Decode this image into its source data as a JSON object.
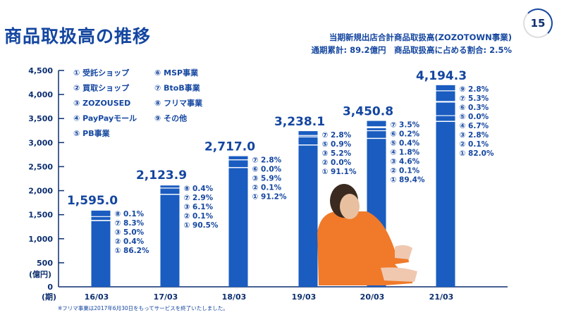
{
  "header": {
    "title": "商品取扱高の推移",
    "subtitle_line1": "当期新規出店合計商品取扱高(ZOZOTOWN事業)",
    "subtitle_line2": "通期累計: 89.2億円　商品取扱高に占める割合: 2.5%",
    "page_number": "15"
  },
  "footnote": "※フリマ事業は2017年6月30日をもってサービスを終了いたしました。",
  "colors": {
    "bar": "#1a5cc0",
    "text": "#1446a0",
    "axis": "#0d2f70"
  },
  "chart_data": {
    "type": "bar",
    "title": "商品取扱高の推移",
    "ylabel": "(億円)",
    "xlabel": "(期)",
    "ylim": [
      0,
      4500
    ],
    "yticks": [
      "0",
      "500",
      "1,000",
      "1,500",
      "2,000",
      "2,500",
      "3,000",
      "3,500",
      "4,000",
      "4,500"
    ],
    "ytick_values": [
      0,
      500,
      1000,
      1500,
      2000,
      2500,
      3000,
      3500,
      4000,
      4500
    ],
    "legend": [
      "① 受託ショップ",
      "② 買取ショップ",
      "③ ZOZOUSED",
      "④ PayPayモール",
      "⑤ PB事業",
      "⑥ MSP事業",
      "⑦ BtoB事業",
      "⑧ フリマ事業",
      "⑨ その他"
    ],
    "categories": [
      "16/03",
      "17/03",
      "18/03",
      "19/03",
      "20/03",
      "21/03"
    ],
    "values": [
      1595.0,
      2123.9,
      2717.0,
      3238.1,
      3450.8,
      4194.3
    ],
    "value_labels": [
      "1,595.0",
      "2,123.9",
      "2,717.0",
      "3,238.1",
      "3,450.8",
      "4,194.3"
    ],
    "breakdown": [
      [
        {
          "label": "⑧ 0.1%",
          "pct": 0.1
        },
        {
          "label": "⑦ 8.3%",
          "pct": 8.3
        },
        {
          "label": "③ 5.0%",
          "pct": 5.0
        },
        {
          "label": "② 0.4%",
          "pct": 0.4
        },
        {
          "label": "① 86.2%",
          "pct": 86.2
        }
      ],
      [
        {
          "label": "⑧ 0.4%",
          "pct": 0.4
        },
        {
          "label": "⑦ 2.9%",
          "pct": 2.9
        },
        {
          "label": "③ 6.1%",
          "pct": 6.1
        },
        {
          "label": "② 0.1%",
          "pct": 0.1
        },
        {
          "label": "① 90.5%",
          "pct": 90.5
        }
      ],
      [
        {
          "label": "⑦ 2.8%",
          "pct": 2.8
        },
        {
          "label": "⑥ 0.0%",
          "pct": 0.0
        },
        {
          "label": "③ 5.9%",
          "pct": 5.9
        },
        {
          "label": "② 0.1%",
          "pct": 0.1
        },
        {
          "label": "① 91.2%",
          "pct": 91.2
        }
      ],
      [
        {
          "label": "⑦ 2.8%",
          "pct": 2.8
        },
        {
          "label": "⑤ 0.9%",
          "pct": 0.9
        },
        {
          "label": "③ 5.2%",
          "pct": 5.2
        },
        {
          "label": "② 0.0%",
          "pct": 0.0
        },
        {
          "label": "① 91.1%",
          "pct": 91.1
        }
      ],
      [
        {
          "label": "⑦ 3.5%",
          "pct": 3.5
        },
        {
          "label": "⑥ 0.2%",
          "pct": 0.2
        },
        {
          "label": "⑤ 0.4%",
          "pct": 0.4
        },
        {
          "label": "④ 1.8%",
          "pct": 1.8
        },
        {
          "label": "③ 4.6%",
          "pct": 4.6
        },
        {
          "label": "② 0.1%",
          "pct": 0.1
        },
        {
          "label": "① 89.4%",
          "pct": 89.4
        }
      ],
      [
        {
          "label": "⑨ 2.8%",
          "pct": 2.8
        },
        {
          "label": "⑦ 5.3%",
          "pct": 5.3
        },
        {
          "label": "⑥ 0.3%",
          "pct": 0.3
        },
        {
          "label": "⑤ 0.0%",
          "pct": 0.0
        },
        {
          "label": "④ 6.7%",
          "pct": 6.7
        },
        {
          "label": "③ 2.8%",
          "pct": 2.8
        },
        {
          "label": "② 0.1%",
          "pct": 0.1
        },
        {
          "label": "① 82.0%",
          "pct": 82.0
        }
      ]
    ]
  }
}
